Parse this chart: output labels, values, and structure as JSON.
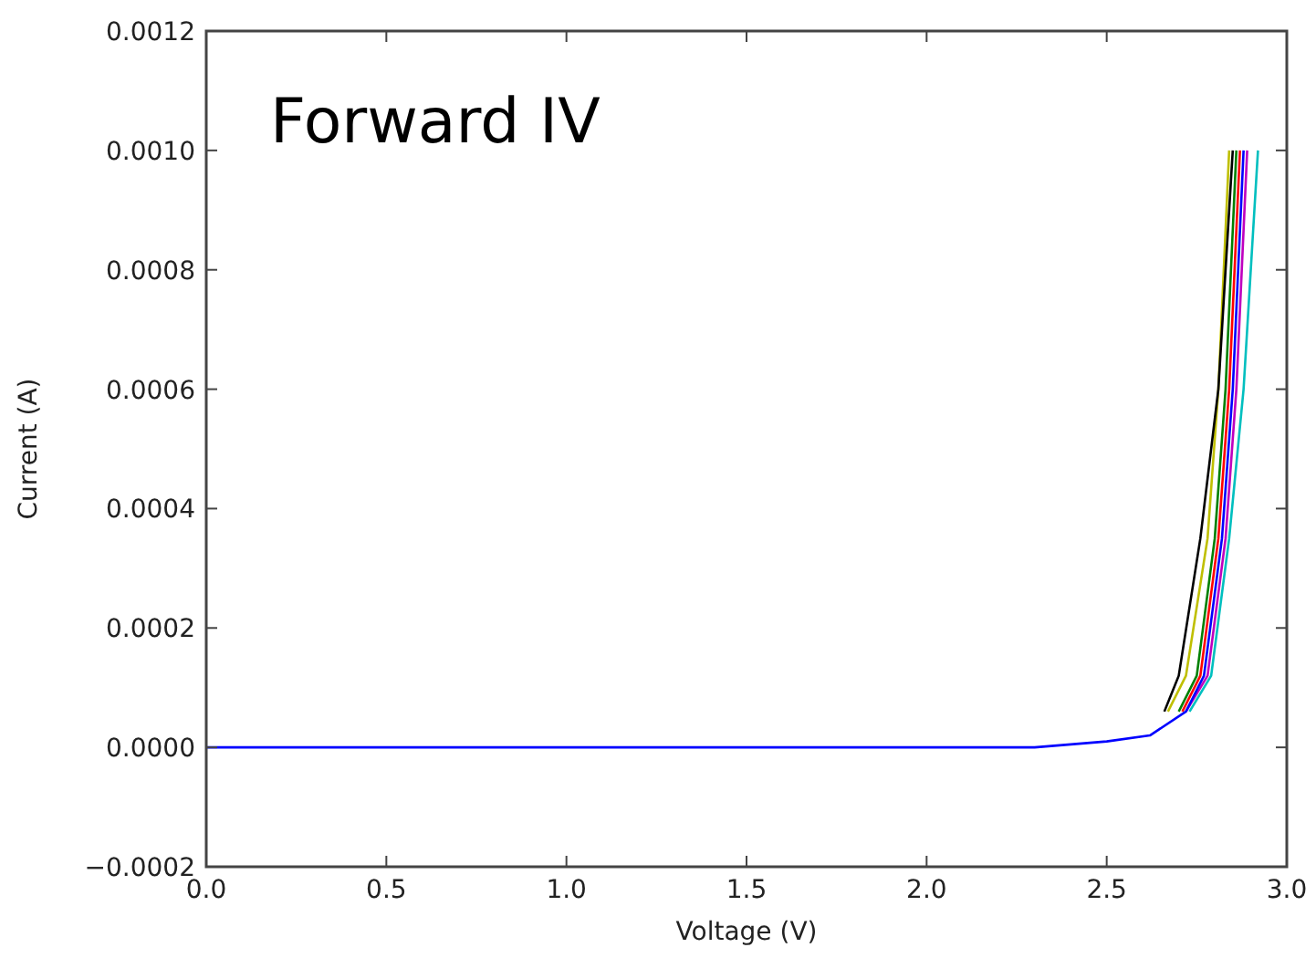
{
  "chart_data": {
    "type": "line",
    "title": "Forward IV",
    "xlabel": "Voltage (V)",
    "ylabel": "Current (A)",
    "xlim": [
      0,
      3
    ],
    "ylim": [
      -0.0002,
      0.0012
    ],
    "xticks": [
      {
        "value": 0,
        "label": "0.0"
      },
      {
        "value": 0.5,
        "label": "0.5"
      },
      {
        "value": 1,
        "label": "1.0"
      },
      {
        "value": 1.5,
        "label": "1.5"
      },
      {
        "value": 2,
        "label": "2.0"
      },
      {
        "value": 2.5,
        "label": "2.5"
      },
      {
        "value": 3,
        "label": "3.0"
      }
    ],
    "yticks": [
      {
        "value": -0.0002,
        "label": "−0.0002"
      },
      {
        "value": 0,
        "label": "0.0000"
      },
      {
        "value": 0.0002,
        "label": "0.0002"
      },
      {
        "value": 0.0004,
        "label": "0.0004"
      },
      {
        "value": 0.0006,
        "label": "0.0006"
      },
      {
        "value": 0.0008,
        "label": "0.0008"
      },
      {
        "value": 0.001,
        "label": "0.0010"
      },
      {
        "value": 0.0012,
        "label": "0.0012"
      }
    ],
    "grid": false,
    "marker": "none",
    "line_style": "solid",
    "series": [
      {
        "color": "#008000",
        "x": [
          2.7,
          2.75,
          2.8,
          2.83,
          2.86
        ],
        "values": [
          6e-05,
          0.00012,
          0.00035,
          0.0006,
          0.001
        ]
      },
      {
        "color": "#ff0000",
        "x": [
          2.71,
          2.76,
          2.81,
          2.84,
          2.87
        ],
        "values": [
          6e-05,
          0.00012,
          0.00035,
          0.0006,
          0.001
        ]
      },
      {
        "color": "#00bfbf",
        "x": [
          2.73,
          2.79,
          2.84,
          2.88,
          2.92
        ],
        "values": [
          6e-05,
          0.00012,
          0.00035,
          0.0006,
          0.001
        ]
      },
      {
        "color": "#bf00bf",
        "x": [
          2.72,
          2.78,
          2.83,
          2.86,
          2.89
        ],
        "values": [
          6e-05,
          0.00012,
          0.00035,
          0.0006,
          0.001
        ]
      },
      {
        "color": "#bfbf00",
        "x": [
          2.67,
          2.72,
          2.78,
          2.81,
          2.84
        ],
        "values": [
          6e-05,
          0.00012,
          0.00035,
          0.0006,
          0.001
        ]
      },
      {
        "color": "#000000",
        "x": [
          2.66,
          2.7,
          2.76,
          2.81,
          2.85
        ],
        "values": [
          6e-05,
          0.00012,
          0.00035,
          0.0006,
          0.001
        ]
      },
      {
        "color": "#0000ff",
        "x": [
          0,
          2.3,
          2.5,
          2.62,
          2.72,
          2.77,
          2.82,
          2.85,
          2.88
        ],
        "values": [
          0,
          0,
          1e-05,
          2e-05,
          6e-05,
          0.00012,
          0.00035,
          0.0006,
          0.001
        ]
      }
    ]
  }
}
